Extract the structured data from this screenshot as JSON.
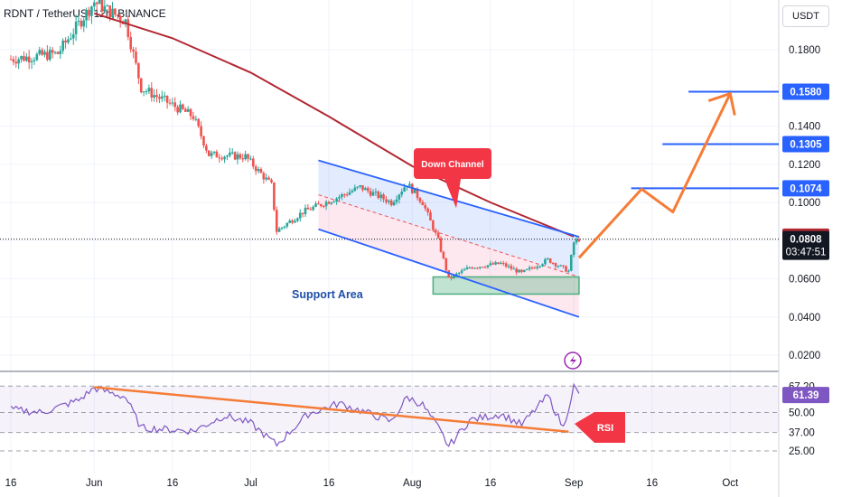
{
  "header": {
    "title": "RDNT / TetherUS, 12h, BINANCE",
    "currency": "USDT"
  },
  "annotations": {
    "down_channel": "Down Channel",
    "support_area": "Support Area",
    "rsi": "RSI"
  },
  "colors": {
    "up": "#26a69a",
    "down": "#ef5350",
    "ma": "#b22833",
    "channel": "#2962ff",
    "forecast": "#f57c36",
    "rsi_line": "#7e57c2",
    "callout": "#f23645",
    "support": "#4caf7d"
  },
  "chart_data": [
    {
      "type": "candlestick",
      "title": "RDNT / TetherUS, 12h, BINANCE",
      "x_tick_labels": [
        "16",
        "Jun",
        "16",
        "Jul",
        "16",
        "Aug",
        "16",
        "Sep",
        "16",
        "Oct"
      ],
      "y_ticks": [
        0.02,
        0.04,
        0.06,
        0.08,
        0.1,
        0.12,
        0.14,
        0.18
      ],
      "y_tick_labels": [
        "0.0200",
        "0.0400",
        "0.0600",
        "0.0800",
        "0.1000",
        "0.1200",
        "0.1400",
        "0.1800"
      ],
      "ylim": [
        0.012,
        0.206
      ],
      "price_path": [
        [
          "2023-05-16",
          0.175
        ],
        [
          "2023-05-25",
          0.178
        ],
        [
          "2023-06-01",
          0.205
        ],
        [
          "2023-06-07",
          0.195
        ],
        [
          "2023-06-10",
          0.16
        ],
        [
          "2023-06-20",
          0.145
        ],
        [
          "2023-06-23",
          0.125
        ],
        [
          "2023-06-30",
          0.124
        ],
        [
          "2023-07-05",
          0.109
        ],
        [
          "2023-07-06",
          0.085
        ],
        [
          "2023-07-11",
          0.095
        ],
        [
          "2023-07-18",
          0.103
        ],
        [
          "2023-07-22",
          0.108
        ],
        [
          "2023-07-28",
          0.1
        ],
        [
          "2023-07-31",
          0.11
        ],
        [
          "2023-08-03",
          0.1
        ],
        [
          "2023-08-06",
          0.08
        ],
        [
          "2023-08-08",
          0.06
        ],
        [
          "2023-08-12",
          0.066
        ],
        [
          "2023-08-18",
          0.068
        ],
        [
          "2023-08-22",
          0.063
        ],
        [
          "2023-08-27",
          0.07
        ],
        [
          "2023-08-31",
          0.064
        ],
        [
          "2023-09-01",
          0.079
        ],
        [
          "2023-09-02",
          0.0808
        ]
      ],
      "moving_average": [
        [
          "2023-06-01",
          0.199
        ],
        [
          "2023-06-16",
          0.186
        ],
        [
          "2023-07-01",
          0.168
        ],
        [
          "2023-07-16",
          0.145
        ],
        [
          "2023-08-01",
          0.119
        ],
        [
          "2023-08-16",
          0.1
        ],
        [
          "2023-09-01",
          0.0821
        ]
      ],
      "down_channel": {
        "upper": [
          [
            "2023-07-14",
            0.122
          ],
          [
            "2023-09-02",
            0.082
          ]
        ],
        "lower": [
          [
            "2023-07-14",
            0.086
          ],
          [
            "2023-09-02",
            0.04
          ]
        ]
      },
      "support_area": {
        "from": "2023-08-05",
        "to": "2023-09-02",
        "low": 0.052,
        "high": 0.061
      },
      "forecast_path": [
        [
          "2023-09-02",
          0.071
        ],
        [
          "2023-09-14",
          0.107
        ],
        [
          "2023-09-20",
          0.095
        ],
        [
          "2023-10-01",
          0.157
        ]
      ],
      "target_levels": [
        {
          "label": "0.1074",
          "value": 0.1074
        },
        {
          "label": "0.1305",
          "value": 0.1305
        },
        {
          "label": "0.1580",
          "value": 0.158
        }
      ],
      "ma_value": {
        "label": "0.0821",
        "value": 0.0821
      },
      "last_price": {
        "label": "0.0808",
        "value": 0.0808,
        "countdown": "03:47:51"
      }
    },
    {
      "type": "line",
      "title": "RSI",
      "levels": [
        67.2,
        50,
        37,
        25
      ],
      "level_labels": [
        "67.20",
        "50.00",
        "37.00",
        "25.00"
      ],
      "ylim": [
        15,
        75
      ],
      "current": {
        "label": "61.39",
        "value": 61.39
      },
      "rsi_path": [
        [
          "2023-05-16",
          52
        ],
        [
          "2023-05-22",
          50
        ],
        [
          "2023-05-29",
          58
        ],
        [
          "2023-06-01",
          66
        ],
        [
          "2023-06-07",
          60
        ],
        [
          "2023-06-10",
          40
        ],
        [
          "2023-06-20",
          38
        ],
        [
          "2023-06-26",
          48
        ],
        [
          "2023-07-01",
          43
        ],
        [
          "2023-07-06",
          29
        ],
        [
          "2023-07-12",
          49
        ],
        [
          "2023-07-18",
          56
        ],
        [
          "2023-07-24",
          49
        ],
        [
          "2023-07-28",
          44
        ],
        [
          "2023-07-31",
          60
        ],
        [
          "2023-08-03",
          55
        ],
        [
          "2023-08-06",
          40
        ],
        [
          "2023-08-08",
          28
        ],
        [
          "2023-08-12",
          45
        ],
        [
          "2023-08-18",
          49
        ],
        [
          "2023-08-22",
          42
        ],
        [
          "2023-08-27",
          61
        ],
        [
          "2023-08-30",
          40
        ],
        [
          "2023-09-01",
          67
        ],
        [
          "2023-09-02",
          61.39
        ]
      ],
      "trendline": [
        [
          "2023-06-01",
          66.5
        ],
        [
          "2023-08-31",
          37.5
        ]
      ]
    }
  ]
}
